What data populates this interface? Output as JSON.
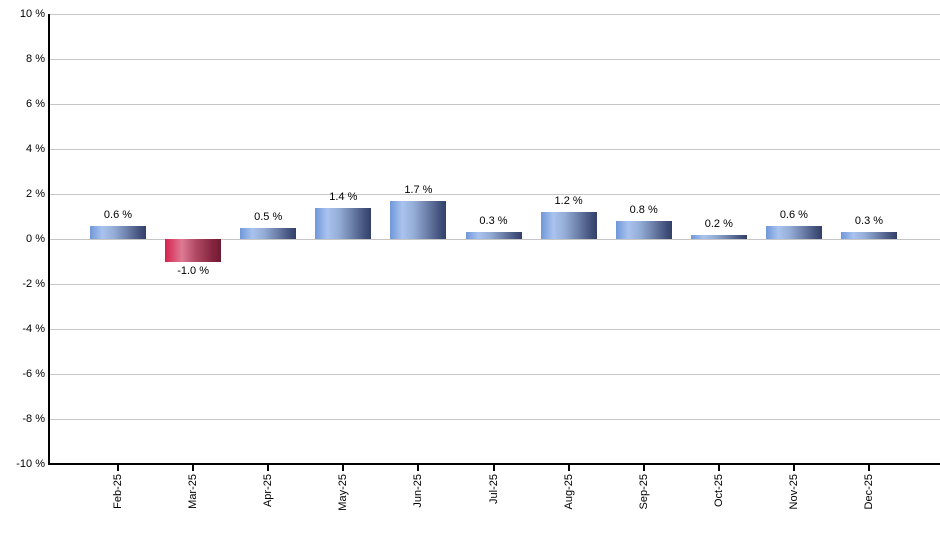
{
  "chart_data": {
    "type": "bar",
    "title": "",
    "xlabel": "",
    "ylabel": "",
    "categories": [
      "Feb-25",
      "Mar-25",
      "Apr-25",
      "May-25",
      "Jun-25",
      "Jul-25",
      "Aug-25",
      "Sep-25",
      "Oct-25",
      "Nov-25",
      "Dec-25"
    ],
    "values": [
      0.6,
      -1.0,
      0.5,
      1.4,
      1.7,
      0.3,
      1.2,
      0.8,
      0.2,
      0.6,
      0.3
    ],
    "value_labels": [
      "0.6 %",
      "-1.0 %",
      "0.5 %",
      "1.4 %",
      "1.7 %",
      "0.3 %",
      "1.2 %",
      "0.8 %",
      "0.2 %",
      "0.6 %",
      "0.3 %"
    ],
    "ylim": [
      -10,
      10
    ],
    "yticks": [
      10,
      8,
      6,
      4,
      2,
      0,
      -2,
      -4,
      -6,
      -8,
      -10
    ],
    "ytick_labels": [
      "10 %",
      "8 %",
      "6 %",
      "4 %",
      "2 %",
      "0 %",
      "-2 %",
      "-4 %",
      "-6 %",
      "-8 %",
      "-10 %"
    ],
    "grid": true,
    "legend": false,
    "colors": {
      "background": "#ffffff",
      "gridline": "#c6c6c6",
      "axis": "#000000",
      "text": "#000000",
      "positive_gradient_stops": [
        [
          "#7097d9",
          0
        ],
        [
          "#a9c3ee",
          22
        ],
        [
          "#95aed8",
          42
        ],
        [
          "#6e82ab",
          65
        ],
        [
          "#44537f",
          88
        ],
        [
          "#334166",
          100
        ]
      ],
      "negative_gradient_stops": [
        [
          "#d6224c",
          0
        ],
        [
          "#de7a94",
          30
        ],
        [
          "#b04a64",
          55
        ],
        [
          "#84243e",
          85
        ],
        [
          "#6d1d32",
          100
        ]
      ]
    }
  }
}
